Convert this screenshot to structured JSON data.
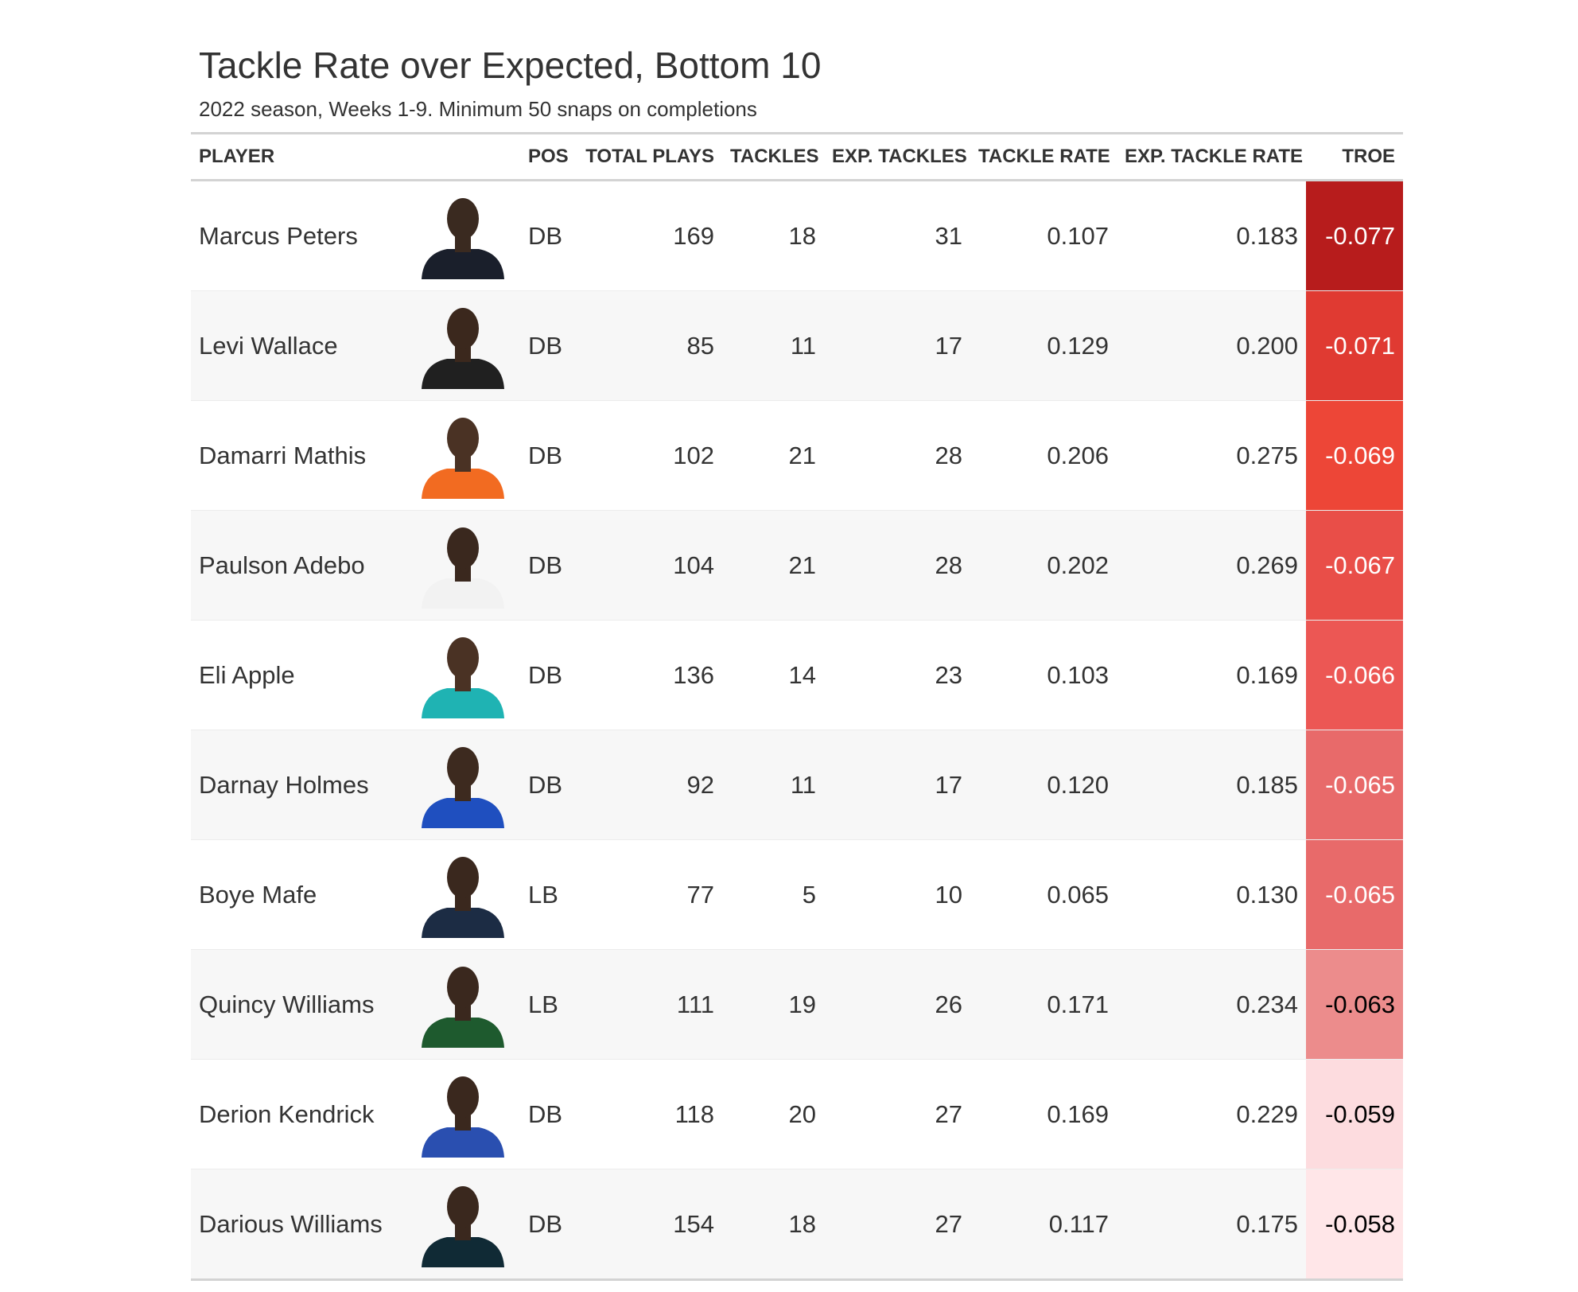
{
  "chart_data": {
    "type": "table",
    "title": "Tackle Rate over Expected, Bottom 10",
    "subtitle": "2022 season, Weeks 1-9. Minimum 50 snaps on completions",
    "columns": [
      "PLAYER",
      "",
      "POS",
      "TOTAL PLAYS",
      "TACKLES",
      "EXP. TACKLES",
      "TACKLE RATE",
      "EXP. TACKLE RATE",
      "TROE"
    ],
    "rows": [
      {
        "player": "Marcus Peters",
        "pos": "DB",
        "total_plays": "169",
        "tackles": "18",
        "exp_tackles": "31",
        "tackle_rate": "0.107",
        "exp_tackle_rate": "0.183",
        "troe": "-0.077",
        "troe_bg": "#b71c1c",
        "troe_fg": "#ffffff",
        "jersey": "#1a1f2b",
        "skin": "#3a2a20"
      },
      {
        "player": "Levi Wallace",
        "pos": "DB",
        "total_plays": "85",
        "tackles": "11",
        "exp_tackles": "17",
        "tackle_rate": "0.129",
        "exp_tackle_rate": "0.200",
        "troe": "-0.071",
        "troe_bg": "#e03a32",
        "troe_fg": "#ffffff",
        "jersey": "#202020",
        "skin": "#3b281d"
      },
      {
        "player": "Damarri Mathis",
        "pos": "DB",
        "total_plays": "102",
        "tackles": "21",
        "exp_tackles": "28",
        "tackle_rate": "0.206",
        "exp_tackle_rate": "0.275",
        "troe": "-0.069",
        "troe_bg": "#ed4637",
        "troe_fg": "#ffffff",
        "jersey": "#f26b21",
        "skin": "#4a3224"
      },
      {
        "player": "Paulson Adebo",
        "pos": "DB",
        "total_plays": "104",
        "tackles": "21",
        "exp_tackles": "28",
        "tackle_rate": "0.202",
        "exp_tackle_rate": "0.269",
        "troe": "-0.067",
        "troe_bg": "#e94e48",
        "troe_fg": "#ffffff",
        "jersey": "#f2f2f2",
        "skin": "#3a281e"
      },
      {
        "player": "Eli Apple",
        "pos": "DB",
        "total_plays": "136",
        "tackles": "14",
        "exp_tackles": "23",
        "tackle_rate": "0.103",
        "exp_tackle_rate": "0.169",
        "troe": "-0.066",
        "troe_bg": "#ec5754",
        "troe_fg": "#ffffff",
        "jersey": "#1fb3b3",
        "skin": "#4a3224"
      },
      {
        "player": "Darnay Holmes",
        "pos": "DB",
        "total_plays": "92",
        "tackles": "11",
        "exp_tackles": "17",
        "tackle_rate": "0.120",
        "exp_tackle_rate": "0.185",
        "troe": "-0.065",
        "troe_bg": "#e86a6a",
        "troe_fg": "#ffffff",
        "jersey": "#1f4fbf",
        "skin": "#3d2a1f"
      },
      {
        "player": "Boye Mafe",
        "pos": "LB",
        "total_plays": "77",
        "tackles": "5",
        "exp_tackles": "10",
        "tackle_rate": "0.065",
        "exp_tackle_rate": "0.130",
        "troe": "-0.065",
        "troe_bg": "#e86a6a",
        "troe_fg": "#ffffff",
        "jersey": "#1c2c44",
        "skin": "#3a281e"
      },
      {
        "player": "Quincy Williams",
        "pos": "LB",
        "total_plays": "111",
        "tackles": "19",
        "exp_tackles": "26",
        "tackle_rate": "0.171",
        "exp_tackle_rate": "0.234",
        "troe": "-0.063",
        "troe_bg": "#ec8c8c",
        "troe_fg": "#000000",
        "jersey": "#1e5a2e",
        "skin": "#3a281e"
      },
      {
        "player": "Derion Kendrick",
        "pos": "DB",
        "total_plays": "118",
        "tackles": "20",
        "exp_tackles": "27",
        "tackle_rate": "0.169",
        "exp_tackle_rate": "0.229",
        "troe": "-0.059",
        "troe_bg": "#fddcdf",
        "troe_fg": "#000000",
        "jersey": "#2a4fb0",
        "skin": "#3a281e"
      },
      {
        "player": "Darious Williams",
        "pos": "DB",
        "total_plays": "154",
        "tackles": "18",
        "exp_tackles": "27",
        "tackle_rate": "0.117",
        "exp_tackle_rate": "0.175",
        "troe": "-0.058",
        "troe_bg": "#ffe6e8",
        "troe_fg": "#000000",
        "jersey": "#102a35",
        "skin": "#3a281e"
      }
    ]
  }
}
